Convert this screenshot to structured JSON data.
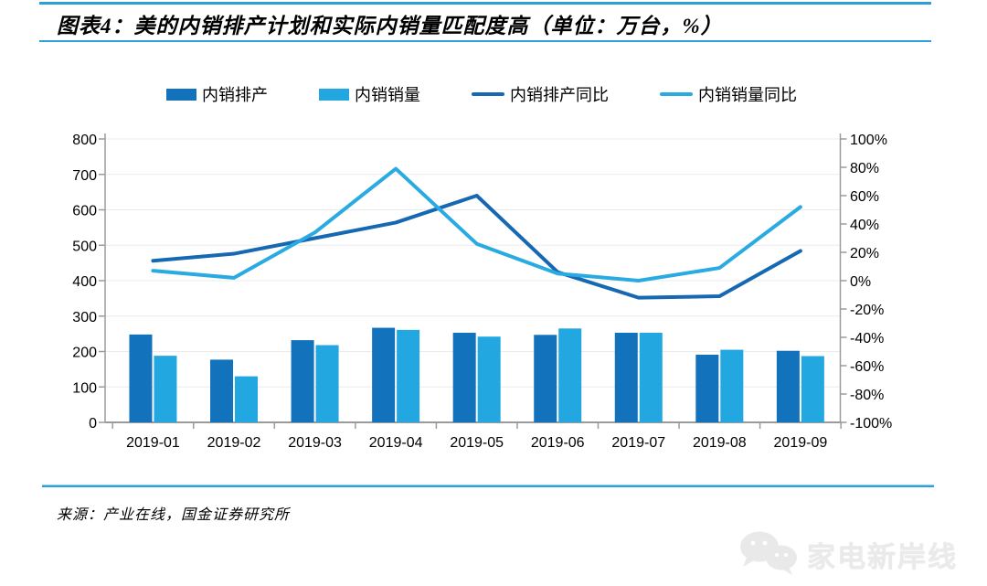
{
  "header": {
    "title": "图表4：美的内销排产计划和实际内销量匹配度高（单位：万台，%）"
  },
  "legend": [
    {
      "label": "内销排产",
      "type": "bar",
      "color": "#1272bc"
    },
    {
      "label": "内销销量",
      "type": "bar",
      "color": "#22a7e0"
    },
    {
      "label": "内销排产同比",
      "type": "line",
      "color": "#1568b1"
    },
    {
      "label": "内销销量同比",
      "type": "line",
      "color": "#29abe2"
    }
  ],
  "chart_data": {
    "type": "bar",
    "subtype": "combo-bar-line",
    "categories": [
      "2019-01",
      "2019-02",
      "2019-03",
      "2019-04",
      "2019-05",
      "2019-06",
      "2019-07",
      "2019-08",
      "2019-09"
    ],
    "series": [
      {
        "name": "内销排产",
        "type": "bar",
        "axis": "left",
        "color": "#1272bc",
        "values": [
          248,
          177,
          232,
          267,
          253,
          247,
          253,
          191,
          202
        ]
      },
      {
        "name": "内销销量",
        "type": "bar",
        "axis": "left",
        "color": "#22a7e0",
        "values": [
          188,
          130,
          218,
          261,
          242,
          265,
          253,
          205,
          187
        ]
      },
      {
        "name": "内销排产同比",
        "type": "line",
        "axis": "right",
        "color": "#1568b1",
        "values": [
          14,
          19,
          30,
          41,
          60,
          6,
          -12,
          -11,
          21
        ]
      },
      {
        "name": "内销销量同比",
        "type": "line",
        "axis": "right",
        "color": "#29abe2",
        "values": [
          7,
          2,
          34,
          79,
          26,
          5,
          0,
          9,
          52
        ]
      }
    ],
    "left_axis": {
      "min": 0,
      "max": 800,
      "step": 100,
      "unit": "万台"
    },
    "right_axis": {
      "min": -100,
      "max": 100,
      "step": 20,
      "unit": "%",
      "label_suffix": "%"
    },
    "grid": true,
    "legend_position": "top",
    "colors": {
      "grid": "#ebebeb",
      "axis": "#9b9b9b",
      "tick_label": "#000000"
    }
  },
  "footer": {
    "source": "来源：产业在线，国金证券研究所"
  },
  "watermark": {
    "text": "家电新岸线",
    "icon": "wechat-icon"
  }
}
